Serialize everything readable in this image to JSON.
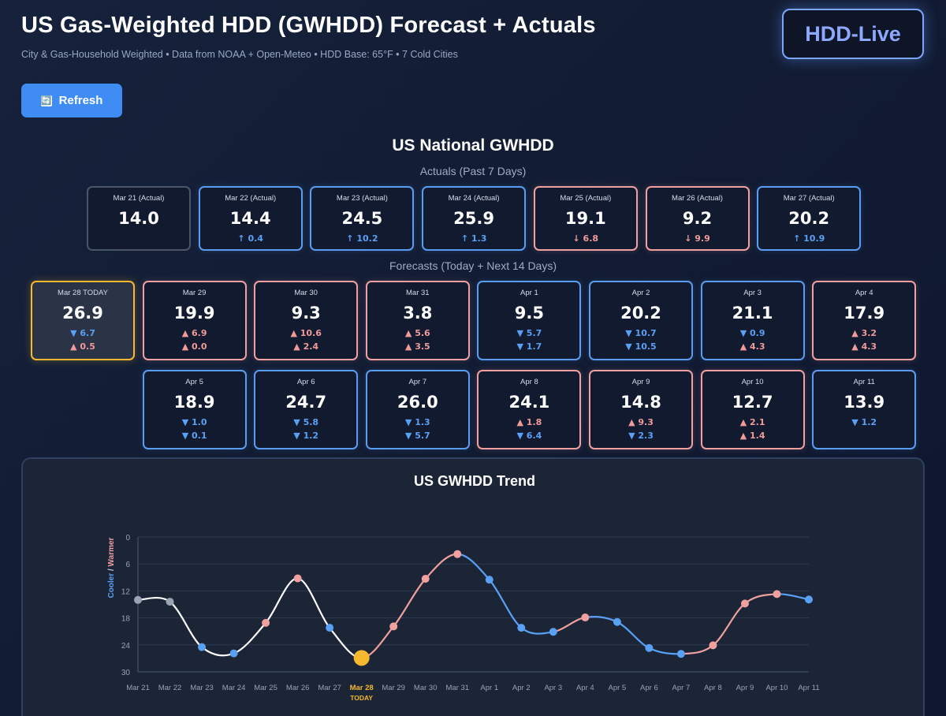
{
  "header": {
    "title": "US Gas-Weighted HDD (GWHDD) Forecast + Actuals",
    "subtitle": "City & Gas-Household Weighted • Data from NOAA + Open-Meteo • HDD Base: 65°F • 7 Cold Cities",
    "logo_text": "HDD-Live",
    "refresh_label": "Refresh",
    "refresh_icon": "🔄"
  },
  "national": {
    "title": "US National GWHDD",
    "actuals_label": "Actuals (Past 7 Days)",
    "forecasts_label": "Forecasts (Today + Next 14 Days)"
  },
  "actuals": [
    {
      "label": "Mar 21 (Actual)",
      "value": "14.0",
      "change": "",
      "tone": "neutral"
    },
    {
      "label": "Mar 22 (Actual)",
      "value": "14.4",
      "change": "↑ 0.4",
      "tone": "cool"
    },
    {
      "label": "Mar 23 (Actual)",
      "value": "24.5",
      "change": "↑ 10.2",
      "tone": "cool"
    },
    {
      "label": "Mar 24 (Actual)",
      "value": "25.9",
      "change": "↑ 1.3",
      "tone": "cool"
    },
    {
      "label": "Mar 25 (Actual)",
      "value": "19.1",
      "change": "↓ 6.8",
      "tone": "warm"
    },
    {
      "label": "Mar 26 (Actual)",
      "value": "9.2",
      "change": "↓ 9.9",
      "tone": "warm"
    },
    {
      "label": "Mar 27 (Actual)",
      "value": "20.2",
      "change": "↑ 10.9",
      "tone": "cool"
    }
  ],
  "forecasts": [
    {
      "label": "Mar 28 TODAY",
      "value": "26.9",
      "d1": "▼ 6.7",
      "d1_tone": "blue",
      "d2": "▲ 0.5",
      "d2_tone": "red",
      "tone": "today"
    },
    {
      "label": "Mar 29",
      "value": "19.9",
      "d1": "▲ 6.9",
      "d1_tone": "red",
      "d2": "▲ 0.0",
      "d2_tone": "red",
      "tone": "warm"
    },
    {
      "label": "Mar 30",
      "value": "9.3",
      "d1": "▲ 10.6",
      "d1_tone": "red",
      "d2": "▲ 2.4",
      "d2_tone": "red",
      "tone": "warm"
    },
    {
      "label": "Mar 31",
      "value": "3.8",
      "d1": "▲ 5.6",
      "d1_tone": "red",
      "d2": "▲ 3.5",
      "d2_tone": "red",
      "tone": "warm"
    },
    {
      "label": "Apr 1",
      "value": "9.5",
      "d1": "▼ 5.7",
      "d1_tone": "blue",
      "d2": "▼ 1.7",
      "d2_tone": "blue",
      "tone": "cool"
    },
    {
      "label": "Apr 2",
      "value": "20.2",
      "d1": "▼ 10.7",
      "d1_tone": "blue",
      "d2": "▼ 10.5",
      "d2_tone": "blue",
      "tone": "cool"
    },
    {
      "label": "Apr 3",
      "value": "21.1",
      "d1": "▼ 0.9",
      "d1_tone": "blue",
      "d2": "▲ 4.3",
      "d2_tone": "red",
      "tone": "cool"
    },
    {
      "label": "Apr 4",
      "value": "17.9",
      "d1": "▲ 3.2",
      "d1_tone": "red",
      "d2": "▲ 4.3",
      "d2_tone": "red",
      "tone": "warm"
    },
    {
      "label": "Apr 5",
      "value": "18.9",
      "d1": "▼ 1.0",
      "d1_tone": "blue",
      "d2": "▼ 0.1",
      "d2_tone": "blue",
      "tone": "cool"
    },
    {
      "label": "Apr 6",
      "value": "24.7",
      "d1": "▼ 5.8",
      "d1_tone": "blue",
      "d2": "▼ 1.2",
      "d2_tone": "blue",
      "tone": "cool"
    },
    {
      "label": "Apr 7",
      "value": "26.0",
      "d1": "▼ 1.3",
      "d1_tone": "blue",
      "d2": "▼ 5.7",
      "d2_tone": "blue",
      "tone": "cool"
    },
    {
      "label": "Apr 8",
      "value": "24.1",
      "d1": "▲ 1.8",
      "d1_tone": "red",
      "d2": "▼ 6.4",
      "d2_tone": "blue",
      "tone": "warm"
    },
    {
      "label": "Apr 9",
      "value": "14.8",
      "d1": "▲ 9.3",
      "d1_tone": "red",
      "d2": "▼ 2.3",
      "d2_tone": "blue",
      "tone": "warm"
    },
    {
      "label": "Apr 10",
      "value": "12.7",
      "d1": "▲ 2.1",
      "d1_tone": "red",
      "d2": "▲ 1.4",
      "d2_tone": "red",
      "tone": "warm"
    },
    {
      "label": "Apr 11",
      "value": "13.9",
      "d1": "▼ 1.2",
      "d1_tone": "blue",
      "d2": "",
      "d2_tone": "blue",
      "tone": "cool"
    }
  ],
  "colors": {
    "cool": "#5aa0f5",
    "warm": "#f0a0a0",
    "actual_line": "#ffffff",
    "neutral_point": "#9aa3b2",
    "today": "#f5b82e"
  },
  "chart_data": {
    "type": "line",
    "title": "US GWHDD Trend",
    "ylabel_cool": "Cooler",
    "ylabel_sep": "/",
    "ylabel_warm": "Warmer",
    "y_inverted": true,
    "ylim": [
      0,
      30
    ],
    "yticks": [
      0,
      6,
      12,
      18,
      24,
      30
    ],
    "today_index": 7,
    "today_label": "TODAY",
    "categories": [
      "Mar 21",
      "Mar 22",
      "Mar 23",
      "Mar 24",
      "Mar 25",
      "Mar 26",
      "Mar 27",
      "Mar 28",
      "Mar 29",
      "Mar 30",
      "Mar 31",
      "Apr 1",
      "Apr 2",
      "Apr 3",
      "Apr 4",
      "Apr 5",
      "Apr 6",
      "Apr 7",
      "Apr 8",
      "Apr 9",
      "Apr 10",
      "Apr 11"
    ],
    "values": [
      14.0,
      14.4,
      24.5,
      25.9,
      19.1,
      9.2,
      20.2,
      26.9,
      19.9,
      9.3,
      3.8,
      9.5,
      20.2,
      21.1,
      17.9,
      18.9,
      24.7,
      26.0,
      24.1,
      14.8,
      12.7,
      13.9
    ],
    "point_tones": [
      "neutral",
      "neutral",
      "cool",
      "cool",
      "warm",
      "warm",
      "cool",
      "today",
      "warm",
      "warm",
      "warm",
      "cool",
      "cool",
      "cool",
      "warm",
      "cool",
      "cool",
      "cool",
      "warm",
      "warm",
      "warm",
      "cool"
    ]
  }
}
